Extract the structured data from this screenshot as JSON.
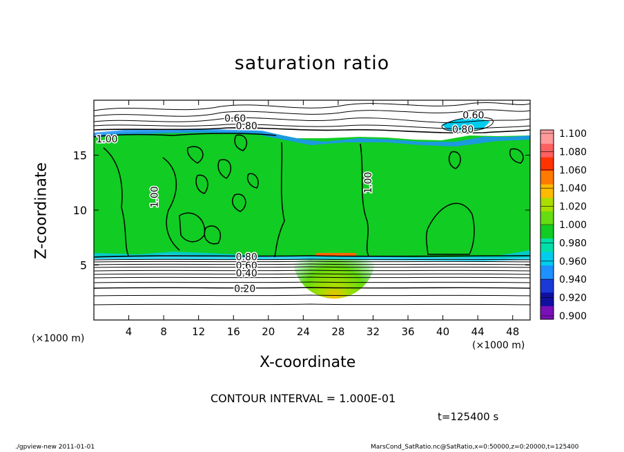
{
  "chart_data": {
    "type": "heatmap",
    "title": "saturation ratio",
    "xlabel": "X-coordinate",
    "ylabel": "Z-coordinate",
    "x_unit_label": "(×1000 m)",
    "x_unit_label_right": "(×1000 m)",
    "xlim": [
      0,
      50
    ],
    "ylim": [
      0,
      20
    ],
    "x_ticks": [
      "4",
      "8",
      "12",
      "16",
      "20",
      "24",
      "28",
      "32",
      "36",
      "40",
      "44",
      "48"
    ],
    "x_tick_values": [
      4,
      8,
      12,
      16,
      20,
      24,
      28,
      32,
      36,
      40,
      44,
      48
    ],
    "y_ticks": [
      "5",
      "10",
      "15"
    ],
    "y_tick_values": [
      5,
      10,
      15
    ],
    "contour_interval_text": "CONTOUR INTERVAL = 1.000E-01",
    "time_text": "t=125400 s",
    "colorbar": {
      "min": 0.9,
      "max": 1.1,
      "labels": [
        "1.100",
        "1.080",
        "1.060",
        "1.040",
        "1.020",
        "1.000",
        "0.980",
        "0.960",
        "0.940",
        "0.920",
        "0.900"
      ],
      "colors": [
        "#7a10b8",
        "#1010a0",
        "#1a3ad8",
        "#1e90ff",
        "#00ccee",
        "#00e0a8",
        "#11cc22",
        "#66dd11",
        "#aadd00",
        "#ffbb00",
        "#ff7a00",
        "#ff3300",
        "#ff6060",
        "#ff9a9a"
      ]
    },
    "contour_labels": [
      {
        "text": "0.60",
        "x": 16.2,
        "z": 18.3
      },
      {
        "text": "0.80",
        "x": 17.5,
        "z": 17.6
      },
      {
        "text": "1.00",
        "x": 1.5,
        "z": 16.4
      },
      {
        "text": "0.60",
        "x": 43.5,
        "z": 18.6
      },
      {
        "text": "0.80",
        "x": 42.3,
        "z": 17.3
      },
      {
        "text": "1.00",
        "x": 7.0,
        "z": 11.2
      },
      {
        "text": "1.00",
        "x": 31.5,
        "z": 12.5
      },
      {
        "text": "0.80",
        "x": 17.5,
        "z": 5.7
      },
      {
        "text": "0.60",
        "x": 17.5,
        "z": 4.9
      },
      {
        "text": "0.40",
        "x": 17.5,
        "z": 4.2
      },
      {
        "text": "0.20",
        "x": 17.3,
        "z": 2.8
      }
    ]
  },
  "footer": {
    "left": "./gpview-new  2011-01-01",
    "right": "MarsCond_SatRatio.nc@SatRatio,x=0:50000,z=0:20000,t=125400"
  }
}
